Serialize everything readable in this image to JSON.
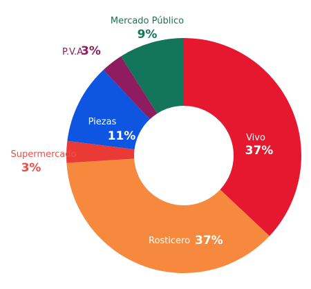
{
  "chart_data": {
    "type": "pie",
    "donut": true,
    "title": "",
    "legend": "none",
    "slices": [
      {
        "name": "Vivo",
        "pct_label": "37%",
        "value": 37,
        "color": "#e5182f",
        "label_color": "#ffffff"
      },
      {
        "name": "Rosticero",
        "pct_label": "37%",
        "value": 37,
        "color": "#f7893f",
        "label_color": "#ffffff"
      },
      {
        "name": "Supermercado",
        "pct_label": "3%",
        "value": 3,
        "color": "#ea3a36",
        "label_color": "#ea4f4b"
      },
      {
        "name": "Piezas",
        "pct_label": "11%",
        "value": 11,
        "color": "#0e55e2",
        "label_color": "#ffffff"
      },
      {
        "name": "P.V.A",
        "pct_label": "3%",
        "value": 3,
        "color": "#8e1c5e",
        "label_color": "#8e1c5e"
      },
      {
        "name": "Mercado Público",
        "pct_label": "9%",
        "value": 9,
        "color": "#137559",
        "label_color": "#137559"
      }
    ]
  }
}
